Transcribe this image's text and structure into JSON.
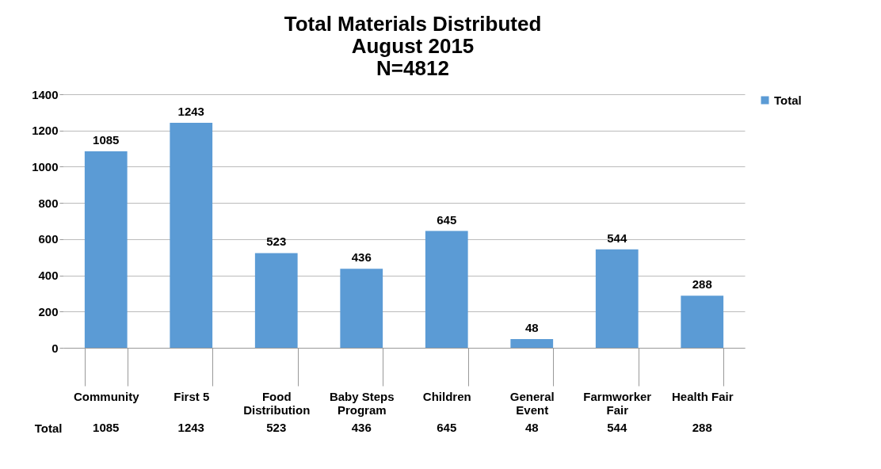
{
  "chart_data": {
    "type": "bar",
    "title": "Total Materials Distributed\nAugust 2015\nN=4812",
    "categories": [
      "Community",
      "First 5",
      "Food Distribution",
      "Baby Steps Program",
      "Children",
      "General Event",
      "Farmworker Fair",
      "Health Fair"
    ],
    "series": [
      {
        "name": "Total",
        "color": "#5b9bd5",
        "values": [
          1085,
          1243,
          523,
          436,
          645,
          48,
          544,
          288
        ]
      }
    ],
    "ylim": [
      0,
      1400
    ],
    "yticks": [
      0,
      200,
      400,
      600,
      800,
      1000,
      1200,
      1400
    ],
    "grid": "y",
    "legend": "right",
    "data_labels": true,
    "annotations": [
      "1085",
      "1243",
      "523",
      "436",
      "645",
      "48",
      "544",
      "288"
    ]
  }
}
